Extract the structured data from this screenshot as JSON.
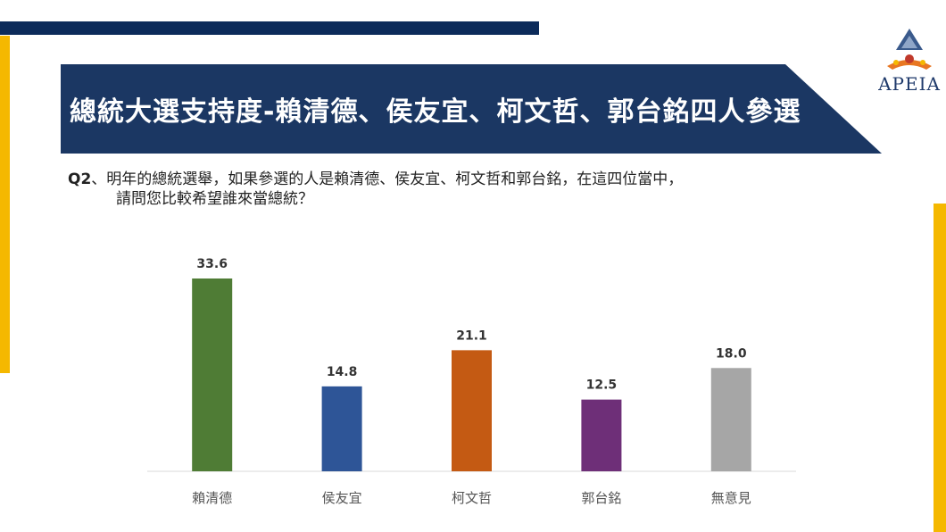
{
  "title": "總統大選支持度-賴清德、侯友宜、柯文哲、郭台銘四人參選",
  "logo_text": "APEIA",
  "question": {
    "number": "Q2",
    "line1": "、明年的總統選舉，如果參選的人是賴清德、侯友宜、柯文哲和郭台銘，在這四位當中，",
    "line2": "請問您比較希望誰來當總統？"
  },
  "colors": {
    "navy": "#0c2b5a",
    "gold": "#f5b800",
    "banner": "#1b3763"
  },
  "chart_data": {
    "type": "bar",
    "categories": [
      "賴清德",
      "侯友宜",
      "柯文哲",
      "郭台銘",
      "無意見"
    ],
    "values": [
      33.6,
      14.8,
      21.1,
      12.5,
      18.0
    ],
    "value_labels": [
      "33.6",
      "14.8",
      "21.1",
      "12.5",
      "18.0"
    ],
    "bar_colors": [
      "#4f7c35",
      "#2e5597",
      "#c45a13",
      "#6e2f78",
      "#a6a6a6"
    ],
    "ylim": [
      0,
      35
    ],
    "grid": false,
    "legend": "none"
  }
}
